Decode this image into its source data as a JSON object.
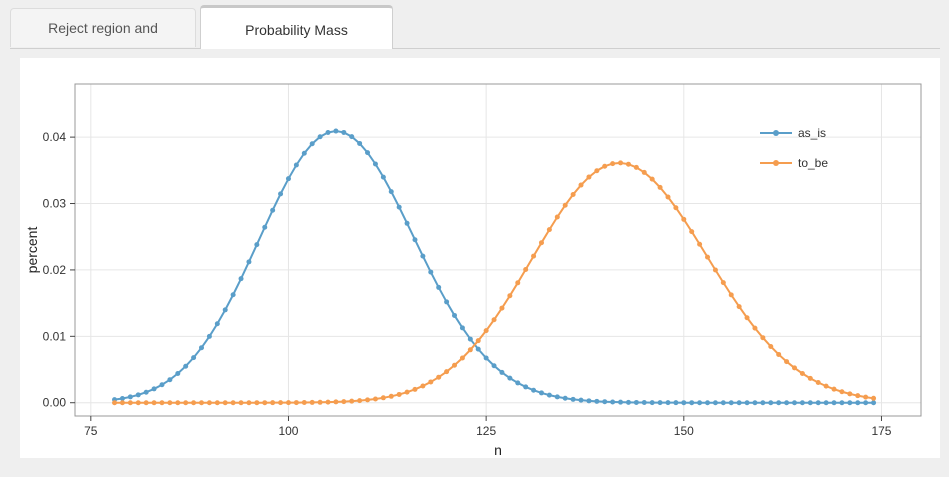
{
  "tabs": [
    {
      "label": "Reject region and Power",
      "active": false
    },
    {
      "label": "Probability Mass Function",
      "active": true
    }
  ],
  "chart_data": {
    "type": "line",
    "title": "",
    "xlabel": "n",
    "ylabel": "percent",
    "xlim": [
      73,
      180
    ],
    "ylim": [
      -0.002,
      0.048
    ],
    "x_ticks": [
      75,
      100,
      125,
      150,
      175
    ],
    "y_ticks": [
      0.0,
      0.01,
      0.02,
      0.03,
      0.04
    ],
    "y_tick_labels": [
      "0.00",
      "0.01",
      "0.02",
      "0.03",
      "0.04"
    ],
    "x_range": [
      78,
      174
    ],
    "grid": true,
    "legend_position": "top-right",
    "series": [
      {
        "name": "as_is",
        "color": "#5a9ec9",
        "distribution": "binomial",
        "n": 1000,
        "p": 0.1064
      },
      {
        "name": "to_be",
        "color": "#f59d4f",
        "distribution": "binomial",
        "n": 1000,
        "p": 0.1422
      }
    ]
  }
}
